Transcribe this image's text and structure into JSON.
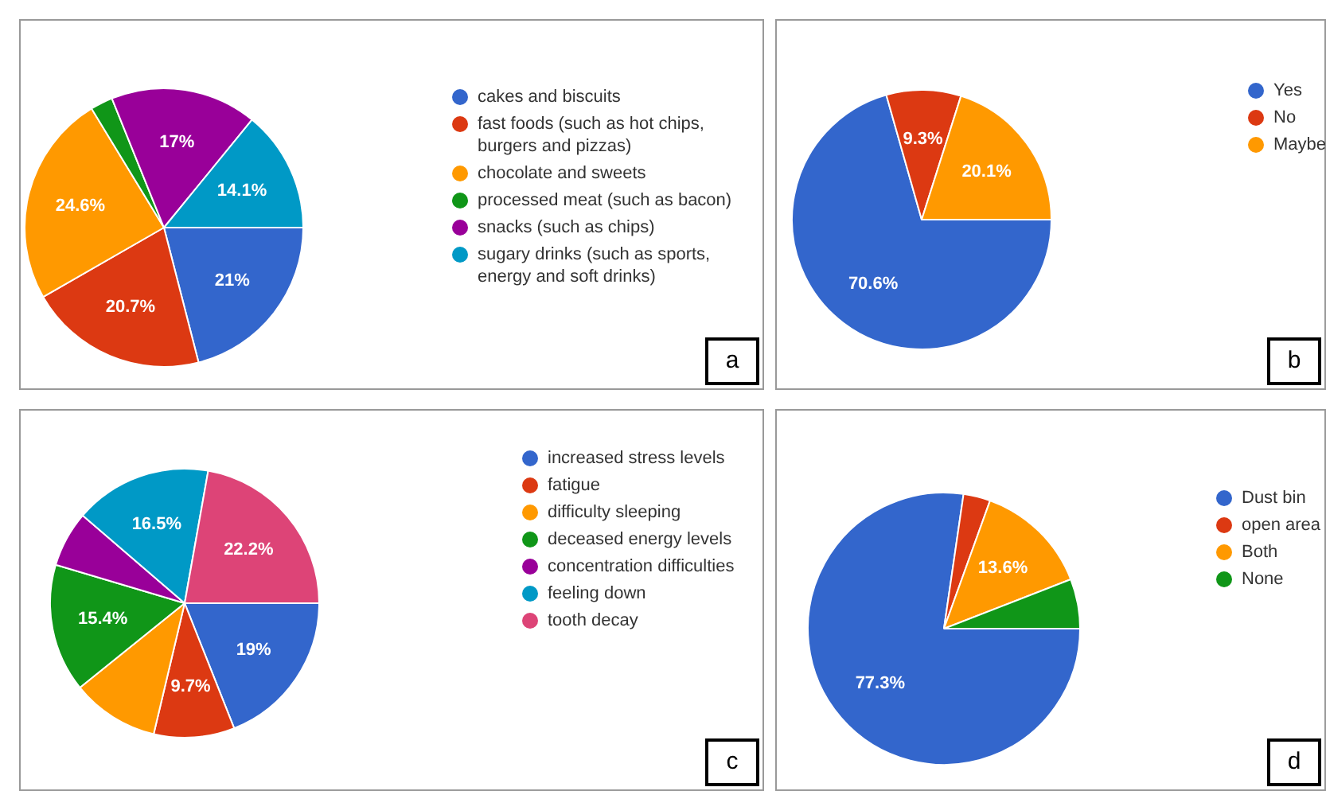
{
  "chart_data": [
    {
      "type": "pie",
      "categories": [
        "cakes and biscuits",
        "fast foods (such as hot chips, burgers and pizzas)",
        "chocolate and sweets",
        "processed meat (such as bacon)",
        "snacks (such as chips)",
        "sugary drinks (such as sports, energy and soft drinks)"
      ],
      "values": [
        21,
        20.7,
        24.6,
        2.6,
        17,
        14.1
      ],
      "colors": [
        "#3366cc",
        "#dc3912",
        "#ff9900",
        "#109618",
        "#990099",
        "#0099c6"
      ],
      "value_labels": [
        "21%",
        "20.7%",
        "24.6%",
        null,
        "17%",
        "14.1%"
      ],
      "legend": "right",
      "annotations": [
        "a"
      ]
    },
    {
      "type": "pie",
      "categories": [
        "Yes",
        "No",
        "Maybe"
      ],
      "values": [
        70.6,
        9.3,
        20.1
      ],
      "colors": [
        "#3366cc",
        "#dc3912",
        "#ff9900"
      ],
      "value_labels": [
        "70.6%",
        "9.3%",
        "20.1%"
      ],
      "legend": "right",
      "annotations": [
        "b"
      ]
    },
    {
      "type": "pie",
      "categories": [
        "increased stress levels",
        "fatigue",
        "difficulty sleeping",
        "deceased energy levels",
        "concentration difficulties",
        "feeling down",
        "tooth decay"
      ],
      "values": [
        19,
        9.7,
        10.5,
        15.4,
        6.7,
        16.5,
        22.2
      ],
      "colors": [
        "#3366cc",
        "#dc3912",
        "#ff9900",
        "#109618",
        "#990099",
        "#0099c6",
        "#dd4477"
      ],
      "value_labels": [
        "19%",
        "9.7%",
        null,
        "15.4%",
        null,
        "16.5%",
        "22.2%"
      ],
      "legend": "right",
      "annotations": [
        "c"
      ]
    },
    {
      "type": "pie",
      "categories": [
        "Dust bin",
        "open area",
        "Both",
        "None"
      ],
      "values": [
        77.3,
        3.2,
        13.6,
        5.9
      ],
      "colors": [
        "#3366cc",
        "#dc3912",
        "#ff9900",
        "#109618"
      ],
      "value_labels": [
        "77.3%",
        null,
        "13.6%",
        null
      ],
      "legend": "right",
      "annotations": [
        "d"
      ]
    }
  ]
}
